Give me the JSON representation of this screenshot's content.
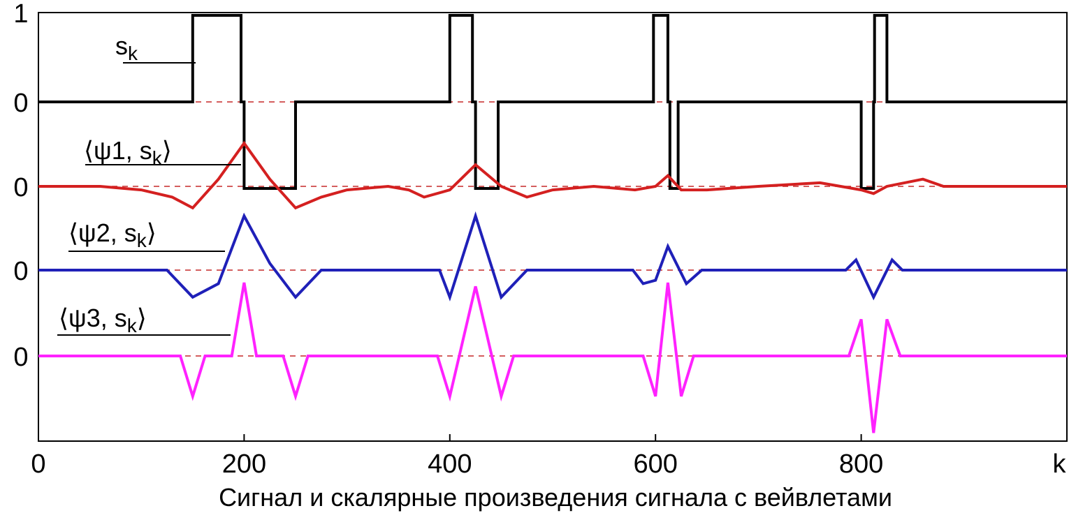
{
  "chart_data": {
    "type": "line",
    "title": "Сигнал и скалярные произведения сигнала с вейвлетами",
    "xlabel": "k",
    "xlim": [
      0,
      1000
    ],
    "x_ticks": [
      "0",
      "200",
      "400",
      "600",
      "800"
    ],
    "y_tick_labels": [
      "1",
      "0",
      "0",
      "0",
      "0"
    ],
    "grid": false,
    "series": [
      {
        "name": "s_k",
        "label": {
          "prefix": "s",
          "sub": "k"
        },
        "color": "#000000",
        "dashed_zero_color": "#c62828",
        "x": [
          0,
          150,
          150,
          152,
          153,
          197,
          198,
          200,
          201,
          203,
          207,
          247,
          250,
          252,
          700,
          400,
          401,
          402,
          403,
          420,
          422,
          425,
          428,
          430,
          447,
          450,
          540,
          598,
          600,
          602,
          604,
          608,
          612,
          617,
          622,
          810
        ],
        "baseline": 0,
        "points": [
          [
            0,
            0
          ],
          [
            150,
            0
          ],
          [
            150,
            1
          ],
          [
            197,
            1
          ],
          [
            197,
            0
          ],
          [
            200,
            0
          ],
          [
            200,
            -1
          ],
          [
            250,
            -1
          ],
          [
            250,
            0
          ],
          [
            400,
            0
          ],
          [
            400,
            1
          ],
          [
            422,
            1
          ],
          [
            422,
            0
          ],
          [
            425,
            0
          ],
          [
            425,
            -1
          ],
          [
            447,
            -1
          ],
          [
            447,
            0
          ],
          [
            598,
            0
          ],
          [
            598,
            1
          ],
          [
            612,
            1
          ],
          [
            612,
            0
          ],
          [
            614,
            0
          ],
          [
            614,
            -1
          ],
          [
            622,
            -1
          ],
          [
            622,
            0
          ],
          [
            800,
            0
          ],
          [
            800,
            -1
          ],
          [
            812,
            -1
          ],
          [
            812,
            0
          ],
          [
            813,
            0
          ],
          [
            813,
            1
          ],
          [
            825,
            1
          ],
          [
            825,
            0
          ],
          [
            1000,
            0
          ]
        ]
      },
      {
        "name": "<ψ1, s_k>",
        "label": {
          "prefix": "⟨ψ1, s",
          "sub": "k",
          "suffix": "⟩"
        },
        "color": "#d42020",
        "points": [
          [
            0,
            0
          ],
          [
            60,
            0
          ],
          [
            100,
            -0.05
          ],
          [
            130,
            -0.15
          ],
          [
            150,
            -0.3
          ],
          [
            175,
            0.1
          ],
          [
            200,
            0.6
          ],
          [
            225,
            0.1
          ],
          [
            250,
            -0.3
          ],
          [
            275,
            -0.15
          ],
          [
            300,
            -0.05
          ],
          [
            340,
            0
          ],
          [
            360,
            -0.05
          ],
          [
            375,
            -0.15
          ],
          [
            400,
            -0.05
          ],
          [
            425,
            0.3
          ],
          [
            450,
            0
          ],
          [
            475,
            -0.15
          ],
          [
            500,
            -0.05
          ],
          [
            540,
            0
          ],
          [
            580,
            -0.05
          ],
          [
            600,
            0
          ],
          [
            612,
            0.15
          ],
          [
            625,
            -0.05
          ],
          [
            650,
            -0.05
          ],
          [
            700,
            0
          ],
          [
            760,
            0.05
          ],
          [
            780,
            0
          ],
          [
            800,
            -0.05
          ],
          [
            812,
            -0.1
          ],
          [
            825,
            0
          ],
          [
            860,
            0.1
          ],
          [
            880,
            0
          ],
          [
            1000,
            0
          ]
        ]
      },
      {
        "name": "<ψ2, s_k>",
        "label": {
          "prefix": "⟨ψ2, s",
          "sub": "k",
          "suffix": "⟩"
        },
        "color": "#1f20b8",
        "points": [
          [
            0,
            0
          ],
          [
            125,
            0
          ],
          [
            150,
            -0.4
          ],
          [
            175,
            -0.2
          ],
          [
            200,
            0.8
          ],
          [
            225,
            0.1
          ],
          [
            250,
            -0.4
          ],
          [
            275,
            0
          ],
          [
            390,
            0
          ],
          [
            400,
            -0.4
          ],
          [
            425,
            0.8
          ],
          [
            450,
            -0.4
          ],
          [
            475,
            0
          ],
          [
            578,
            0
          ],
          [
            588,
            -0.2
          ],
          [
            600,
            -0.15
          ],
          [
            612,
            0.35
          ],
          [
            630,
            -0.2
          ],
          [
            645,
            0
          ],
          [
            785,
            0
          ],
          [
            795,
            0.15
          ],
          [
            812,
            -0.4
          ],
          [
            830,
            0.15
          ],
          [
            840,
            0
          ],
          [
            1000,
            0
          ]
        ]
      },
      {
        "name": "<ψ3, s_k>",
        "label": {
          "prefix": "⟨ψ3, s",
          "sub": "k",
          "suffix": "⟩"
        },
        "color": "#ff22ff",
        "points": [
          [
            0,
            0
          ],
          [
            138,
            0
          ],
          [
            150,
            -0.55
          ],
          [
            162,
            0
          ],
          [
            188,
            0
          ],
          [
            200,
            1.0
          ],
          [
            212,
            0
          ],
          [
            238,
            0
          ],
          [
            250,
            -0.55
          ],
          [
            262,
            0
          ],
          [
            388,
            0
          ],
          [
            400,
            -0.55
          ],
          [
            425,
            0.95
          ],
          [
            450,
            -0.55
          ],
          [
            462,
            0
          ],
          [
            588,
            0
          ],
          [
            600,
            -0.55
          ],
          [
            612,
            1.0
          ],
          [
            625,
            -0.55
          ],
          [
            637,
            0
          ],
          [
            788,
            0
          ],
          [
            800,
            0.5
          ],
          [
            812,
            -1.05
          ],
          [
            825,
            0.5
          ],
          [
            838,
            0
          ],
          [
            1000,
            0
          ]
        ]
      }
    ]
  }
}
